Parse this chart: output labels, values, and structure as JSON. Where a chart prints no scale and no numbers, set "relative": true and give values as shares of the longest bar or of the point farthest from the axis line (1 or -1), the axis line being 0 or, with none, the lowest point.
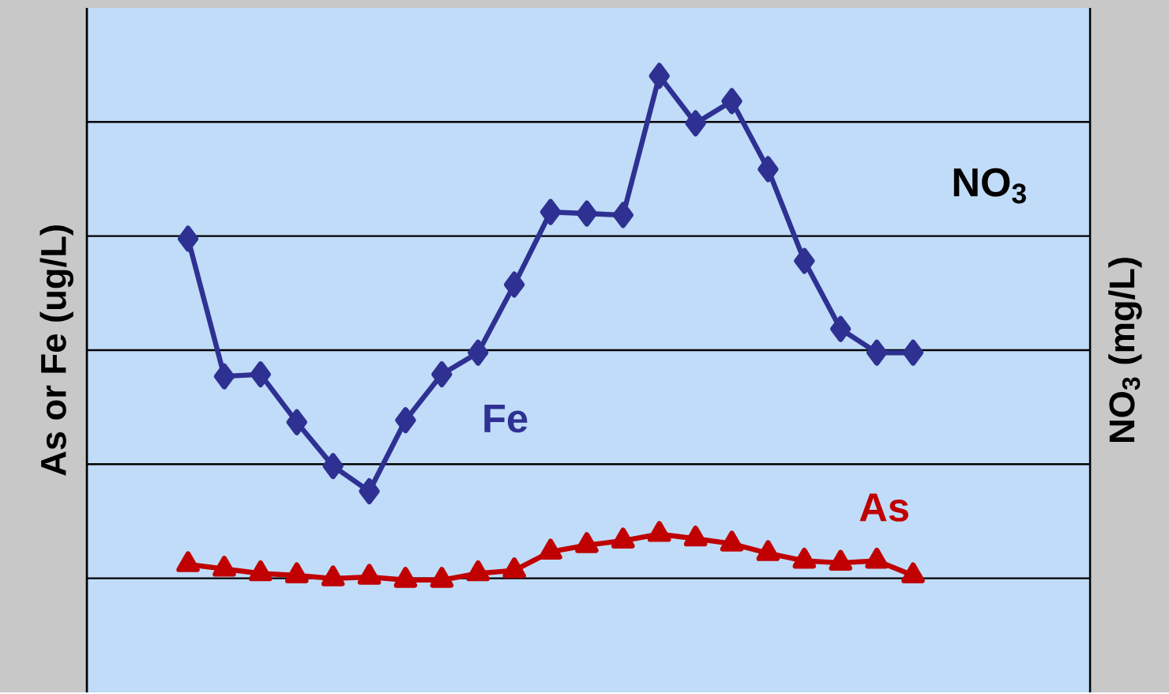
{
  "chart_data": {
    "type": "line",
    "relative": true,
    "ylabel": "As or Fe (ug/L)",
    "y2label": "NO$_{3}$ (mg/L)",
    "grid": "y",
    "annotations": [
      "NO$_{3}$"
    ],
    "categories": [
      null,
      null,
      null,
      null,
      null,
      null,
      null,
      null,
      null,
      null,
      null,
      null,
      null,
      null,
      null,
      null,
      null,
      null,
      null,
      null,
      null
    ],
    "series": [
      {
        "name": "Fe",
        "color": "#2e3192",
        "marker": "diamond",
        "values": [
          0.677,
          0.404,
          0.408,
          0.313,
          0.226,
          0.176,
          0.317,
          0.408,
          0.451,
          0.586,
          0.73,
          0.727,
          0.724,
          1,
          0.906,
          0.95,
          0.815,
          0.633,
          0.498,
          0.451,
          0.451
        ]
      },
      {
        "name": "As",
        "color": "#c00000",
        "marker": "triangle",
        "values": [
          0.031,
          0.022,
          0.013,
          0.009,
          0.003,
          0.006,
          0,
          0,
          0.013,
          0.019,
          0.056,
          0.069,
          0.078,
          0.091,
          0.082,
          0.072,
          0.053,
          0.038,
          0.034,
          0.038,
          0.009
        ]
      }
    ]
  }
}
